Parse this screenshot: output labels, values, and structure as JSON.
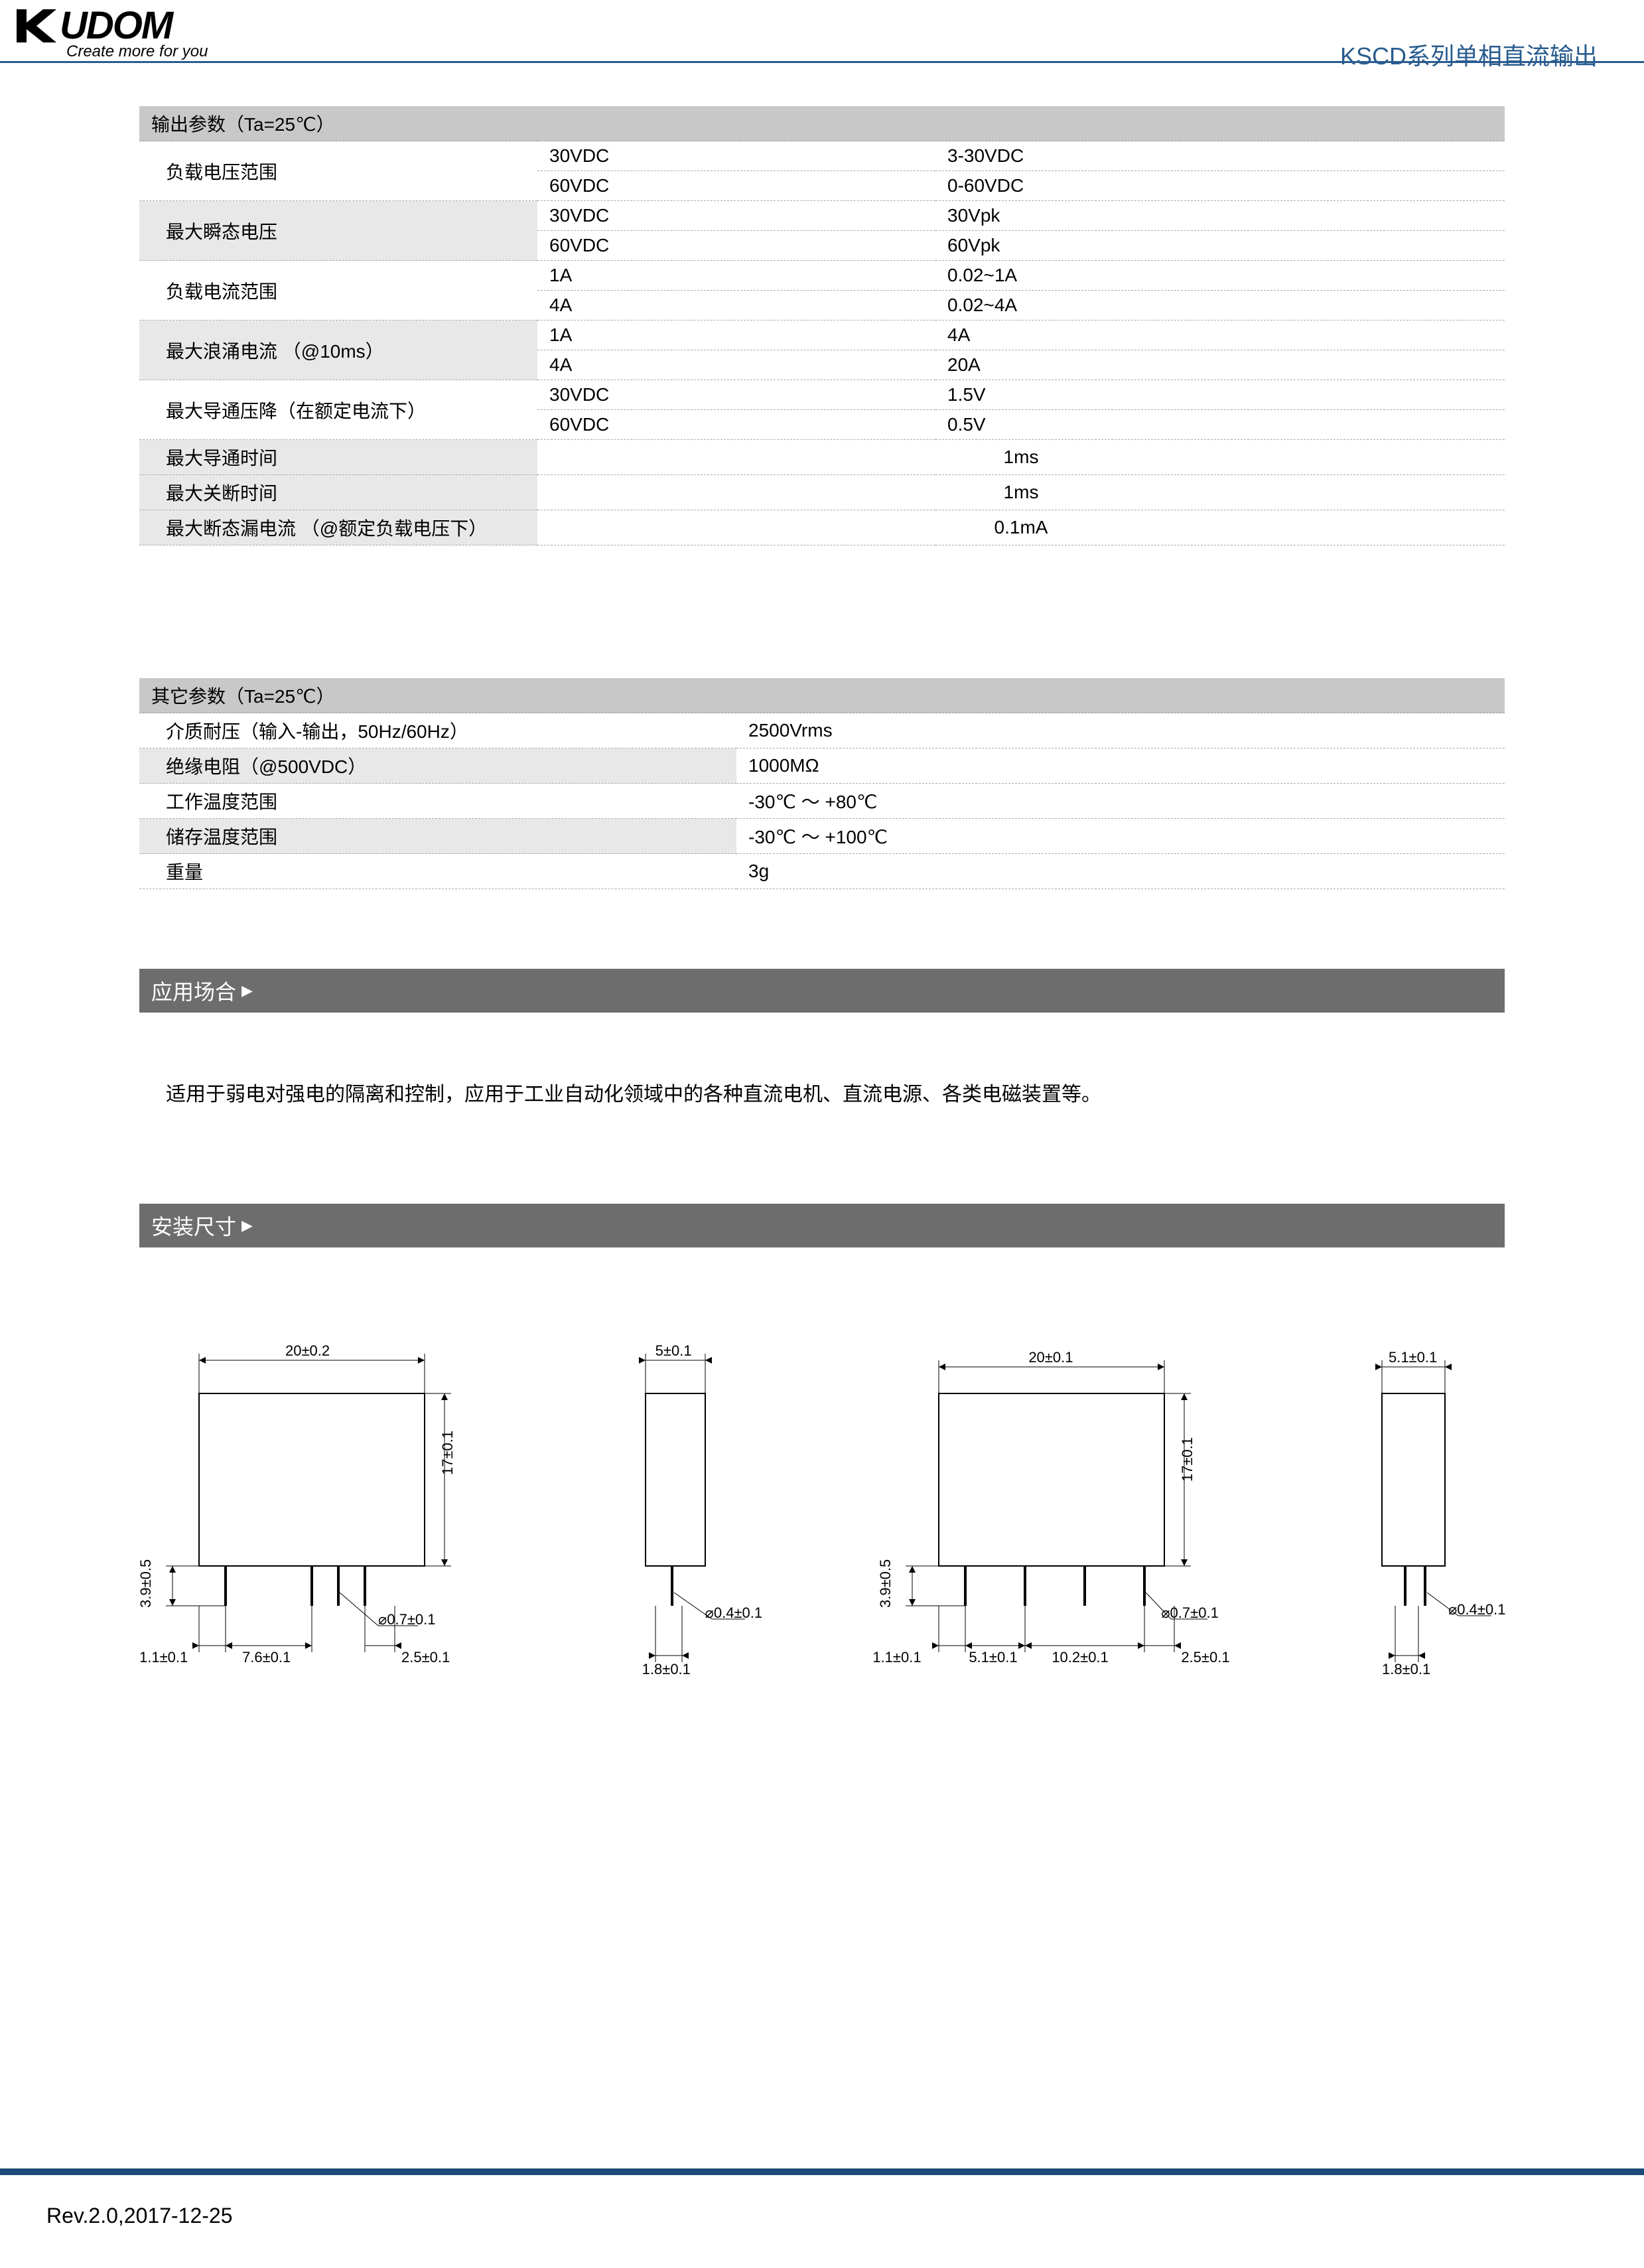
{
  "logo": {
    "brand": "UDOM",
    "tagline": "Create more for you"
  },
  "page_title": "KSCD系列单相直流输出",
  "table1": {
    "header": "输出参数（Ta=25℃）",
    "rows": [
      {
        "label": "负载电压范围",
        "pairs": [
          [
            "30VDC",
            "3-30VDC"
          ],
          [
            "60VDC",
            "0-60VDC"
          ]
        ],
        "alt": false
      },
      {
        "label": "最大瞬态电压",
        "pairs": [
          [
            "30VDC",
            "30Vpk"
          ],
          [
            "60VDC",
            "60Vpk"
          ]
        ],
        "alt": true
      },
      {
        "label": "负载电流范围",
        "pairs": [
          [
            "1A",
            "0.02~1A"
          ],
          [
            "4A",
            "0.02~4A"
          ]
        ],
        "alt": false
      },
      {
        "label": "最大浪涌电流 （@10ms）",
        "pairs": [
          [
            "1A",
            "4A"
          ],
          [
            "4A",
            "20A"
          ]
        ],
        "alt": true
      },
      {
        "label": "最大导通压降（在额定电流下）",
        "pairs": [
          [
            "30VDC",
            "1.5V"
          ],
          [
            "60VDC",
            "0.5V"
          ]
        ],
        "alt": false
      }
    ],
    "singles": [
      {
        "label": "最大导通时间",
        "value": "1ms",
        "alt": true
      },
      {
        "label": "最大关断时间",
        "value": "1ms",
        "alt": true
      },
      {
        "label": "最大断态漏电流 （@额定负载电压下）",
        "value": "0.1mA",
        "alt": true
      }
    ]
  },
  "table2": {
    "header": "其它参数（Ta=25℃）",
    "rows": [
      {
        "label": "介质耐压（输入-输出，50Hz/60Hz）",
        "value": "2500Vrms"
      },
      {
        "label": "绝缘电阻（@500VDC）",
        "value": "1000MΩ"
      },
      {
        "label": "工作温度范围",
        "value": "-30℃ ～ +80℃"
      },
      {
        "label": "储存温度范围",
        "value": "-30℃ ～ +100℃"
      },
      {
        "label": "重量",
        "value": "3g"
      }
    ]
  },
  "section_app": "应用场合",
  "app_text": "适用于弱电对强电的隔离和控制，应用于工业自动化领域中的各种直流电机、直流电源、各类电磁装置等。",
  "section_dim": "安装尺寸",
  "drawings": {
    "d1": {
      "w": "20±0.2",
      "h": "17±0.1",
      "lh": "3.9±0.5",
      "ll": "1.1±0.1",
      "mid": "7.6±0.1",
      "pin_d": "⌀0.7±0.1",
      "pin_r": "2.5±0.1"
    },
    "d2": {
      "w": "5±0.1",
      "pin_d": "⌀0.4±0.1",
      "foot": "1.8±0.1"
    },
    "d3": {
      "w": "20±0.1",
      "h": "17±0.1",
      "lh": "3.9±0.5",
      "ll": "1.1±0.1",
      "a": "5.1±0.1",
      "b": "10.2±0.1",
      "pin_d": "⌀0.7±0.1",
      "pin_r": "2.5±0.1"
    },
    "d4": {
      "w": "5.1±0.1",
      "pin_d": "⌀0.4±0.1",
      "foot": "1.8±0.1"
    }
  },
  "footer": "Rev.2.0,2017-12-25",
  "colors": {
    "header_line": "#2a5c8f",
    "footer_bar": "#1a4a7a",
    "section_bar": "#6d6d6d"
  }
}
